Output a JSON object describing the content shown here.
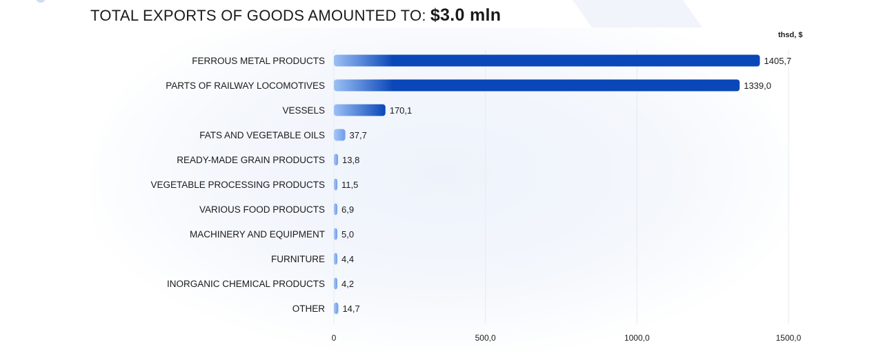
{
  "chart_data": {
    "type": "bar",
    "orientation": "horizontal",
    "title_prefix": "TOTAL EXPORTS OF GOODS AMOUNTED TO:",
    "title_amount": "$3.0 mln",
    "unit_label": "thsd, $",
    "categories": [
      "FERROUS METAL PRODUCTS",
      "PARTS OF RAILWAY LOCOMOTIVES",
      "VESSELS",
      "FATS AND VEGETABLE OILS",
      "READY-MADE GRAIN PRODUCTS",
      "VEGETABLE PROCESSING PRODUCTS",
      "VARIOUS FOOD PRODUCTS",
      "MACHINERY AND EQUIPMENT",
      "FURNITURE",
      "INORGANIC CHEMICAL PRODUCTS",
      "OTHER"
    ],
    "values": [
      1405.7,
      1339.0,
      170.1,
      37.7,
      13.8,
      11.5,
      6.9,
      5.0,
      4.4,
      4.2,
      14.7
    ],
    "value_labels": [
      "1405,7",
      "1339,0",
      "170,1",
      "37,7",
      "13,8",
      "11,5",
      "6,9",
      "5,0",
      "4,4",
      "4,2",
      "14,7"
    ],
    "xlim": [
      0,
      1500
    ],
    "x_ticks": [
      0,
      500,
      1000,
      1500
    ],
    "x_tick_labels": [
      "0",
      "500,0",
      "1000,0",
      "1500,0"
    ],
    "grid": "vertical",
    "colors": {
      "bar_dark": "#0a47b8",
      "bar_light": "#9cc0f5",
      "grid": "#e6eaf2",
      "text": "#1a1a1a"
    }
  }
}
